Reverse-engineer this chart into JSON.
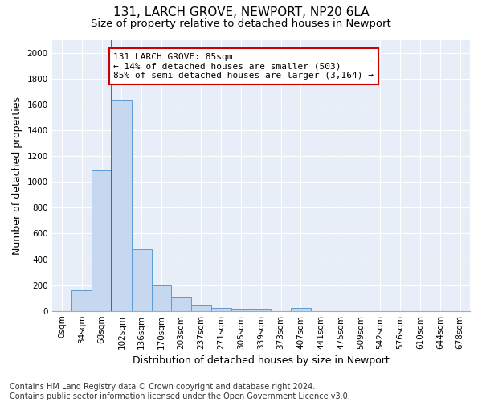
{
  "title": "131, LARCH GROVE, NEWPORT, NP20 6LA",
  "subtitle": "Size of property relative to detached houses in Newport",
  "xlabel": "Distribution of detached houses by size in Newport",
  "ylabel": "Number of detached properties",
  "bar_color": "#c5d8f0",
  "bar_edge_color": "#5b9bd5",
  "categories": [
    "0sqm",
    "34sqm",
    "68sqm",
    "102sqm",
    "136sqm",
    "170sqm",
    "203sqm",
    "237sqm",
    "271sqm",
    "305sqm",
    "339sqm",
    "373sqm",
    "407sqm",
    "441sqm",
    "475sqm",
    "509sqm",
    "542sqm",
    "576sqm",
    "610sqm",
    "644sqm",
    "678sqm"
  ],
  "values": [
    0,
    160,
    1090,
    1630,
    480,
    200,
    105,
    45,
    25,
    15,
    15,
    0,
    20,
    0,
    0,
    0,
    0,
    0,
    0,
    0,
    0
  ],
  "ylim": [
    0,
    2100
  ],
  "yticks": [
    0,
    200,
    400,
    600,
    800,
    1000,
    1200,
    1400,
    1600,
    1800,
    2000
  ],
  "red_line_x": 2.5,
  "annotation_text": "131 LARCH GROVE: 85sqm\n← 14% of detached houses are smaller (503)\n85% of semi-detached houses are larger (3,164) →",
  "annotation_box_color": "#ffffff",
  "annotation_box_edge": "#cc0000",
  "fig_bg_color": "#ffffff",
  "plot_bg_color": "#e8eef7",
  "grid_color": "#ffffff",
  "footer_line1": "Contains HM Land Registry data © Crown copyright and database right 2024.",
  "footer_line2": "Contains public sector information licensed under the Open Government Licence v3.0.",
  "title_fontsize": 11,
  "subtitle_fontsize": 9.5,
  "axis_label_fontsize": 9,
  "tick_fontsize": 7.5,
  "annotation_fontsize": 8,
  "footer_fontsize": 7
}
